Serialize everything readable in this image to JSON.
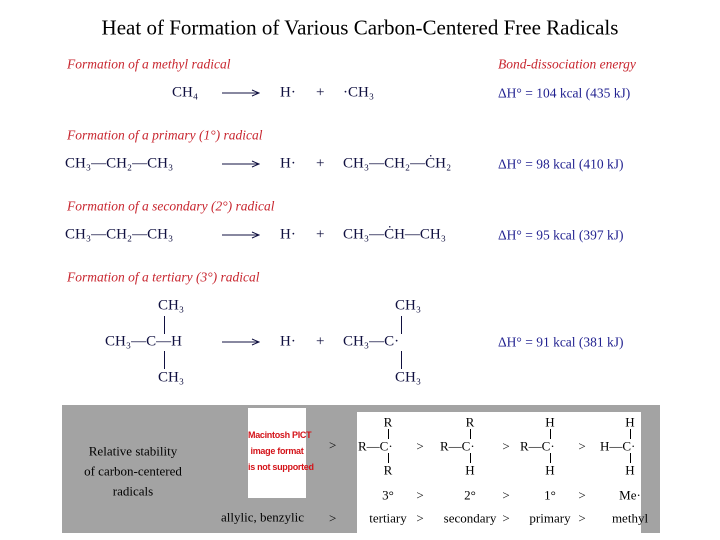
{
  "title": "Heat of Formation of Various Carbon-Centered Free Radicals",
  "energy_header": "Bond-dissociation energy",
  "reactions": [
    {
      "label": "Formation of a methyl radical",
      "reactant": "CH₄",
      "h_radical": "H·",
      "plus": "+",
      "product": "·CH₃",
      "energy": "ΔH° = 104 kcal (435 kJ)"
    },
    {
      "label": "Formation of a primary (1°) radical",
      "reactant": "CH₃—CH₂—CH₃",
      "h_radical": "H·",
      "plus": "+",
      "product": "CH₃—CH₂—ĊH₂",
      "energy": "ΔH° = 98 kcal (410 kJ)"
    },
    {
      "label": "Formation of a secondary (2°) radical",
      "reactant": "CH₃—CH₂—CH₃",
      "h_radical": "H·",
      "plus": "+",
      "product": "CH₃—ĊH—CH₃",
      "energy": "ΔH° = 95 kcal (397 kJ)"
    },
    {
      "label": "Formation of a tertiary (3°) radical",
      "reactant": {
        "top": "CH₃",
        "middle": "CH₃—C—H",
        "bottom": "CH₃"
      },
      "h_radical": "H·",
      "plus": "+",
      "product": {
        "top": "CH₃",
        "middle": "CH₃—C·",
        "bottom": "CH₃"
      },
      "energy": "ΔH° = 91 kcal (381 kJ)"
    }
  ],
  "stability": {
    "caption": [
      "Relative stability",
      "of carbon-centered",
      "radicals"
    ],
    "image_placeholder": [
      "Macintosh PICT",
      "image format",
      "is not supported"
    ],
    "allylic": "allylic, benzylic",
    "gt": ">",
    "structures": [
      {
        "top": "R",
        "middle": "R—C·",
        "bottom": "R"
      },
      {
        "top": "R",
        "middle": "R—C·",
        "bottom": "H"
      },
      {
        "top": "H",
        "middle": "R—C·",
        "bottom": "H"
      },
      {
        "top": "H",
        "middle": "H—C·",
        "bottom": "H"
      }
    ],
    "degrees": [
      "3°",
      "2°",
      "1°",
      "Me·"
    ],
    "names": [
      "tertiary",
      "secondary",
      "primary",
      "methyl"
    ]
  }
}
